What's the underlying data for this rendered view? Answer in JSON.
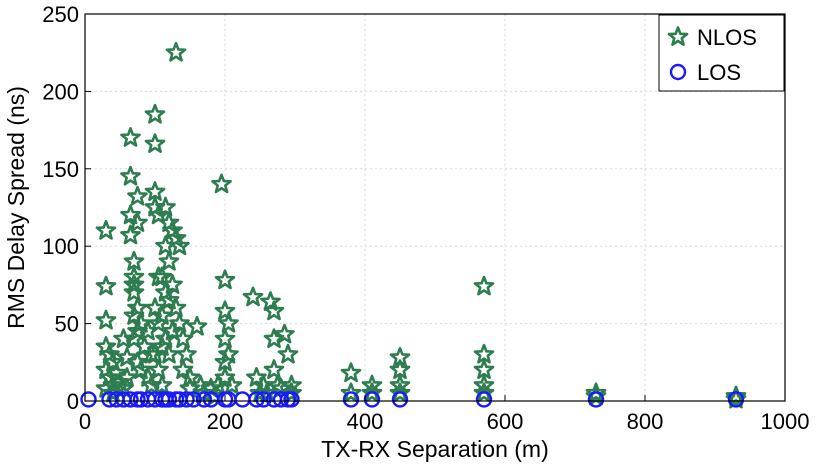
{
  "chart_data": {
    "type": "scatter",
    "title": "",
    "xlabel": "TX-RX Separation (m)",
    "ylabel": "RMS Delay Spread (ns)",
    "xlim": [
      0,
      1000
    ],
    "ylim": [
      0,
      250
    ],
    "xticks": [
      0,
      200,
      400,
      600,
      800,
      1000
    ],
    "yticks": [
      0,
      50,
      100,
      150,
      200,
      250
    ],
    "grid": true,
    "legend_position": "top-right",
    "series": [
      {
        "name": "NLOS",
        "marker": "star",
        "color": "#2e7d4f",
        "x": [
          30,
          30,
          30,
          30,
          30,
          30,
          35,
          35,
          40,
          40,
          40,
          45,
          50,
          55,
          55,
          60,
          60,
          65,
          65,
          65,
          65,
          70,
          70,
          70,
          70,
          70,
          70,
          75,
          75,
          75,
          75,
          75,
          80,
          80,
          85,
          90,
          90,
          95,
          95,
          100,
          100,
          100,
          100,
          100,
          100,
          105,
          105,
          105,
          105,
          110,
          110,
          110,
          110,
          115,
          115,
          115,
          115,
          120,
          120,
          120,
          120,
          125,
          125,
          125,
          130,
          130,
          130,
          135,
          135,
          140,
          140,
          145,
          150,
          150,
          160,
          165,
          170,
          180,
          185,
          190,
          195,
          200,
          200,
          200,
          200,
          200,
          205,
          205,
          210,
          240,
          245,
          250,
          255,
          260,
          265,
          270,
          270,
          270,
          275,
          280,
          285,
          290,
          295,
          295,
          380,
          380,
          410,
          410,
          450,
          450,
          450,
          450,
          570,
          570,
          570,
          570,
          570,
          730,
          730,
          930,
          930
        ],
        "y": [
          110,
          74,
          52,
          35,
          20,
          8,
          30,
          15,
          25,
          10,
          5,
          18,
          12,
          40,
          8,
          28,
          15,
          170,
          145,
          120,
          107,
          90,
          80,
          75,
          70,
          55,
          40,
          132,
          115,
          60,
          45,
          25,
          50,
          20,
          35,
          45,
          15,
          30,
          10,
          185,
          166,
          135,
          125,
          60,
          30,
          120,
          80,
          50,
          20,
          80,
          55,
          35,
          10,
          125,
          100,
          70,
          40,
          115,
          90,
          65,
          30,
          110,
          75,
          45,
          225,
          105,
          60,
          100,
          50,
          40,
          20,
          30,
          15,
          8,
          48,
          10,
          5,
          8,
          3,
          10,
          140,
          78,
          58,
          40,
          25,
          15,
          50,
          30,
          10,
          67,
          15,
          5,
          10,
          5,
          64,
          58,
          40,
          20,
          10,
          8,
          43,
          30,
          10,
          5,
          18,
          5,
          10,
          5,
          28,
          20,
          10,
          5,
          74,
          30,
          20,
          10,
          5,
          5,
          3,
          3,
          1
        ]
      },
      {
        "name": "LOS",
        "marker": "circle",
        "color": "#1a1aff",
        "x": [
          5,
          35,
          45,
          55,
          65,
          75,
          80,
          90,
          100,
          110,
          115,
          120,
          130,
          135,
          145,
          155,
          170,
          180,
          200,
          205,
          225,
          245,
          255,
          270,
          280,
          290,
          295,
          380,
          410,
          450,
          570,
          730,
          930
        ],
        "y": [
          1,
          1,
          1,
          1,
          1,
          1,
          1,
          1,
          1,
          1,
          1,
          1,
          1,
          1,
          1,
          1,
          1,
          1,
          1,
          1,
          1,
          1,
          1,
          1,
          1,
          1,
          1,
          1,
          1,
          1,
          1,
          1,
          1
        ]
      }
    ]
  }
}
